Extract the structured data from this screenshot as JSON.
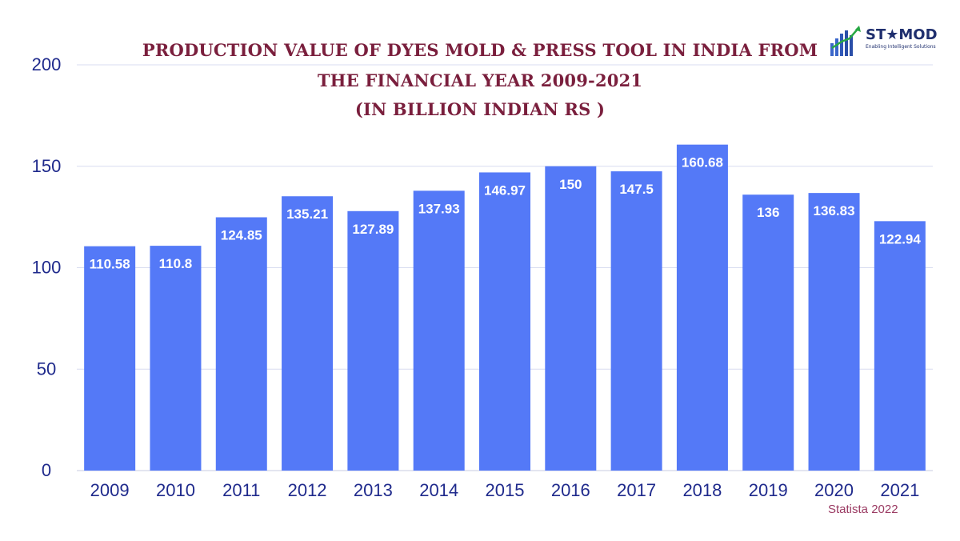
{
  "chart_data": {
    "type": "bar",
    "title_lines": [
      "PRODUCTION VALUE OF DYES MOLD & PRESS TOOL IN INDIA FROM",
      "THE FINANCIAL YEAR 2009-2021",
      "(IN BILLION INDIAN RS )"
    ],
    "categories": [
      "2009",
      "2010",
      "2011",
      "2012",
      "2013",
      "2014",
      "2015",
      "2016",
      "2017",
      "2018",
      "2019",
      "2020",
      "2021"
    ],
    "values": [
      110.58,
      110.8,
      124.85,
      135.21,
      127.89,
      137.93,
      146.97,
      150,
      147.5,
      160.68,
      136,
      136.83,
      122.94
    ],
    "value_labels": [
      "110.58",
      "110.8",
      "124.85",
      "135.21",
      "127.89",
      "137.93",
      "146.97",
      "150",
      "147.5",
      "160.68",
      "136",
      "136.83",
      "122.94"
    ],
    "ylim": [
      0,
      200
    ],
    "yticks": [
      "0",
      "50",
      "100",
      "150",
      "200"
    ],
    "xlabel": "",
    "ylabel": "",
    "grid": true,
    "colors": {
      "bar": "#5479f7",
      "title": "#7a1f3d",
      "axis_text": "#1f2a8c",
      "grid": "#d8dcf0",
      "value_label": "#ffffff"
    }
  },
  "logo": {
    "name": "ST★MOD",
    "tagline": "Enabling Intelligent Solutions"
  },
  "source": "Statista 2022"
}
